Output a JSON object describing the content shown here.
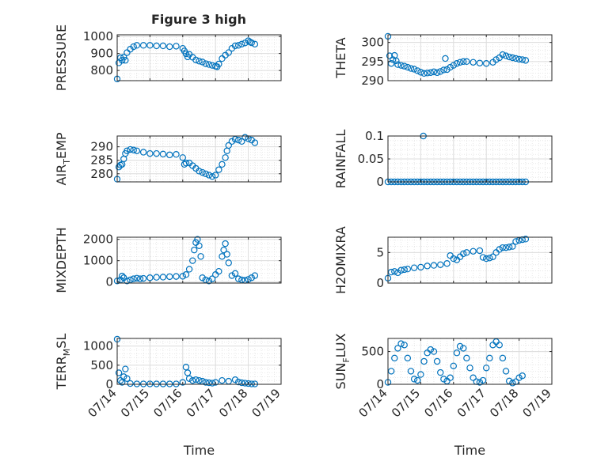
{
  "figure": {
    "title": "Figure 3 high",
    "marker_color": "#0072BD"
  },
  "chart_data": [
    {
      "type": "scatter",
      "ylabel": "PRESSURE",
      "xlim": [
        "07/14",
        "07/19"
      ],
      "ylim": [
        740,
        1010
      ],
      "yticks": [
        800,
        900,
        1000
      ],
      "ytick_labels": [
        "800",
        "900",
        "1000"
      ],
      "x_labels_shown": false,
      "title": "Figure 3 high",
      "grid": true,
      "points": [
        [
          0.0,
          750
        ],
        [
          0.05,
          845
        ],
        [
          0.1,
          875
        ],
        [
          0.15,
          860
        ],
        [
          0.2,
          878
        ],
        [
          0.25,
          860
        ],
        [
          0.3,
          905
        ],
        [
          0.4,
          925
        ],
        [
          0.5,
          940
        ],
        [
          0.6,
          948
        ],
        [
          0.8,
          948
        ],
        [
          1.0,
          948
        ],
        [
          1.2,
          945
        ],
        [
          1.4,
          945
        ],
        [
          1.6,
          940
        ],
        [
          1.8,
          943
        ],
        [
          2.0,
          930
        ],
        [
          2.05,
          915
        ],
        [
          2.1,
          898
        ],
        [
          2.15,
          880
        ],
        [
          2.2,
          895
        ],
        [
          2.3,
          878
        ],
        [
          2.4,
          862
        ],
        [
          2.5,
          855
        ],
        [
          2.6,
          850
        ],
        [
          2.7,
          840
        ],
        [
          2.8,
          835
        ],
        [
          2.9,
          830
        ],
        [
          3.0,
          825
        ],
        [
          3.05,
          822
        ],
        [
          3.1,
          838
        ],
        [
          3.2,
          870
        ],
        [
          3.3,
          890
        ],
        [
          3.4,
          905
        ],
        [
          3.5,
          930
        ],
        [
          3.6,
          945
        ],
        [
          3.7,
          948
        ],
        [
          3.8,
          955
        ],
        [
          3.9,
          962
        ],
        [
          4.0,
          975
        ],
        [
          4.05,
          968
        ],
        [
          4.1,
          963
        ],
        [
          4.2,
          955
        ]
      ]
    },
    {
      "type": "scatter",
      "ylabel": "THETA",
      "xlim": [
        "07/14",
        "07/19"
      ],
      "ylim": [
        290,
        302
      ],
      "yticks": [
        290,
        295,
        300
      ],
      "ytick_labels": [
        "290",
        "295",
        "300"
      ],
      "x_labels_shown": false,
      "grid": true,
      "points": [
        [
          0.0,
          301.6
        ],
        [
          0.05,
          296.5
        ],
        [
          0.1,
          294.5
        ],
        [
          0.15,
          295.5
        ],
        [
          0.2,
          296.6
        ],
        [
          0.25,
          295.2
        ],
        [
          0.3,
          294.2
        ],
        [
          0.4,
          294.0
        ],
        [
          0.5,
          293.8
        ],
        [
          0.6,
          293.5
        ],
        [
          0.7,
          293.2
        ],
        [
          0.8,
          293.0
        ],
        [
          0.9,
          292.6
        ],
        [
          1.0,
          292.2
        ],
        [
          1.1,
          291.9
        ],
        [
          1.2,
          292.0
        ],
        [
          1.3,
          292.1
        ],
        [
          1.4,
          292.3
        ],
        [
          1.5,
          292.1
        ],
        [
          1.6,
          292.4
        ],
        [
          1.7,
          292.8
        ],
        [
          1.75,
          295.8
        ],
        [
          1.8,
          292.9
        ],
        [
          1.9,
          293.5
        ],
        [
          2.0,
          294.0
        ],
        [
          2.1,
          294.5
        ],
        [
          2.2,
          294.8
        ],
        [
          2.3,
          295.0
        ],
        [
          2.4,
          295.0
        ],
        [
          2.6,
          294.8
        ],
        [
          2.8,
          294.6
        ],
        [
          3.0,
          294.5
        ],
        [
          3.2,
          294.8
        ],
        [
          3.3,
          295.5
        ],
        [
          3.4,
          296.0
        ],
        [
          3.5,
          296.8
        ],
        [
          3.6,
          296.5
        ],
        [
          3.7,
          296.2
        ],
        [
          3.8,
          296.0
        ],
        [
          3.9,
          295.8
        ],
        [
          4.0,
          295.6
        ],
        [
          4.1,
          295.5
        ],
        [
          4.2,
          295.3
        ]
      ]
    },
    {
      "type": "scatter",
      "ylabel": "AIR_T EMP",
      "xlim": [
        "07/14",
        "07/19"
      ],
      "ylim": [
        277,
        294
      ],
      "yticks": [
        280,
        285,
        290
      ],
      "ytick_labels": [
        "280",
        "285",
        "290"
      ],
      "x_labels_shown": false,
      "grid": true,
      "points": [
        [
          0.0,
          278.0
        ],
        [
          0.05,
          282.5
        ],
        [
          0.1,
          283.2
        ],
        [
          0.15,
          283.5
        ],
        [
          0.2,
          285.5
        ],
        [
          0.25,
          287.5
        ],
        [
          0.3,
          288.5
        ],
        [
          0.4,
          289.0
        ],
        [
          0.5,
          288.8
        ],
        [
          0.6,
          288.5
        ],
        [
          0.8,
          288.0
        ],
        [
          1.0,
          287.5
        ],
        [
          1.2,
          287.5
        ],
        [
          1.4,
          287.3
        ],
        [
          1.6,
          287.0
        ],
        [
          1.8,
          287.2
        ],
        [
          2.0,
          286.0
        ],
        [
          2.05,
          283.5
        ],
        [
          2.1,
          284.0
        ],
        [
          2.2,
          284.0
        ],
        [
          2.3,
          283.0
        ],
        [
          2.4,
          282.0
        ],
        [
          2.5,
          281.0
        ],
        [
          2.6,
          280.5
        ],
        [
          2.7,
          280.0
        ],
        [
          2.8,
          279.5
        ],
        [
          2.9,
          279.0
        ],
        [
          3.0,
          279.5
        ],
        [
          3.1,
          281.5
        ],
        [
          3.2,
          283.5
        ],
        [
          3.3,
          286.0
        ],
        [
          3.35,
          288.5
        ],
        [
          3.4,
          290.5
        ],
        [
          3.5,
          292.0
        ],
        [
          3.6,
          292.8
        ],
        [
          3.7,
          292.5
        ],
        [
          3.8,
          292.0
        ],
        [
          3.9,
          293.5
        ],
        [
          4.0,
          293.0
        ],
        [
          4.1,
          292.5
        ],
        [
          4.2,
          291.5
        ]
      ]
    },
    {
      "type": "scatter",
      "ylabel": "RAINFALL",
      "xlim": [
        "07/14",
        "07/19"
      ],
      "ylim": [
        0,
        0.1
      ],
      "yticks": [
        0,
        0.05,
        0.1
      ],
      "ytick_labels": [
        "0",
        "0.05",
        "0.1"
      ],
      "x_labels_shown": false,
      "grid": true,
      "points": [
        [
          0.0,
          0
        ],
        [
          0.1,
          0
        ],
        [
          0.2,
          0
        ],
        [
          0.3,
          0
        ],
        [
          0.4,
          0
        ],
        [
          0.5,
          0
        ],
        [
          0.6,
          0
        ],
        [
          0.7,
          0
        ],
        [
          0.8,
          0
        ],
        [
          0.9,
          0
        ],
        [
          1.0,
          0
        ],
        [
          1.1,
          0
        ],
        [
          1.2,
          0
        ],
        [
          1.3,
          0
        ],
        [
          1.4,
          0
        ],
        [
          1.5,
          0
        ],
        [
          1.6,
          0
        ],
        [
          1.7,
          0
        ],
        [
          1.8,
          0
        ],
        [
          1.9,
          0
        ],
        [
          2.0,
          0
        ],
        [
          2.1,
          0
        ],
        [
          2.2,
          0
        ],
        [
          2.3,
          0
        ],
        [
          2.4,
          0
        ],
        [
          2.5,
          0
        ],
        [
          2.6,
          0
        ],
        [
          2.7,
          0
        ],
        [
          2.8,
          0
        ],
        [
          2.9,
          0
        ],
        [
          3.0,
          0
        ],
        [
          3.1,
          0
        ],
        [
          3.2,
          0
        ],
        [
          3.3,
          0
        ],
        [
          3.4,
          0
        ],
        [
          3.5,
          0
        ],
        [
          3.6,
          0
        ],
        [
          3.7,
          0
        ],
        [
          3.8,
          0
        ],
        [
          3.9,
          0
        ],
        [
          4.0,
          0
        ],
        [
          4.1,
          0
        ],
        [
          4.2,
          0
        ],
        [
          1.08,
          0.1
        ]
      ]
    },
    {
      "type": "scatter",
      "ylabel": "MIXDEPTH",
      "xlim": [
        "07/14",
        "07/19"
      ],
      "ylim": [
        -50,
        2100
      ],
      "yticks": [
        0,
        1000,
        2000
      ],
      "ytick_labels": [
        "0",
        "1000",
        "2000"
      ],
      "x_labels_shown": false,
      "grid": true,
      "points": [
        [
          0.0,
          50
        ],
        [
          0.1,
          100
        ],
        [
          0.15,
          280
        ],
        [
          0.2,
          200
        ],
        [
          0.3,
          50
        ],
        [
          0.4,
          100
        ],
        [
          0.5,
          150
        ],
        [
          0.6,
          180
        ],
        [
          0.7,
          150
        ],
        [
          0.8,
          170
        ],
        [
          1.0,
          200
        ],
        [
          1.2,
          220
        ],
        [
          1.4,
          230
        ],
        [
          1.6,
          250
        ],
        [
          1.8,
          260
        ],
        [
          2.0,
          270
        ],
        [
          2.1,
          350
        ],
        [
          2.2,
          600
        ],
        [
          2.3,
          1000
        ],
        [
          2.35,
          1500
        ],
        [
          2.4,
          1850
        ],
        [
          2.45,
          2000
        ],
        [
          2.5,
          1700
        ],
        [
          2.55,
          1200
        ],
        [
          2.6,
          200
        ],
        [
          2.7,
          100
        ],
        [
          2.8,
          50
        ],
        [
          2.9,
          150
        ],
        [
          3.0,
          350
        ],
        [
          3.1,
          500
        ],
        [
          3.2,
          1200
        ],
        [
          3.25,
          1500
        ],
        [
          3.3,
          1800
        ],
        [
          3.35,
          1300
        ],
        [
          3.4,
          900
        ],
        [
          3.5,
          300
        ],
        [
          3.6,
          400
        ],
        [
          3.7,
          150
        ],
        [
          3.8,
          100
        ],
        [
          3.9,
          80
        ],
        [
          4.0,
          120
        ],
        [
          4.1,
          200
        ],
        [
          4.2,
          300
        ]
      ]
    },
    {
      "type": "scatter",
      "ylabel": "H2OMIXRA",
      "xlim": [
        "07/14",
        "07/19"
      ],
      "ylim": [
        0,
        7.5
      ],
      "yticks": [
        0,
        5
      ],
      "ytick_labels": [
        "0",
        "5"
      ],
      "x_labels_shown": false,
      "grid": true,
      "points": [
        [
          0.0,
          0.8
        ],
        [
          0.1,
          1.8
        ],
        [
          0.2,
          1.9
        ],
        [
          0.3,
          1.7
        ],
        [
          0.4,
          2.1
        ],
        [
          0.5,
          2.2
        ],
        [
          0.6,
          2.3
        ],
        [
          0.8,
          2.5
        ],
        [
          1.0,
          2.6
        ],
        [
          1.2,
          2.8
        ],
        [
          1.4,
          2.9
        ],
        [
          1.6,
          3.0
        ],
        [
          1.8,
          3.2
        ],
        [
          1.9,
          4.5
        ],
        [
          2.0,
          4.0
        ],
        [
          2.1,
          3.8
        ],
        [
          2.2,
          4.3
        ],
        [
          2.3,
          4.8
        ],
        [
          2.4,
          5.0
        ],
        [
          2.6,
          5.2
        ],
        [
          2.8,
          5.3
        ],
        [
          2.9,
          4.2
        ],
        [
          3.0,
          4.0
        ],
        [
          3.1,
          4.1
        ],
        [
          3.2,
          4.3
        ],
        [
          3.3,
          5.0
        ],
        [
          3.4,
          5.5
        ],
        [
          3.5,
          5.8
        ],
        [
          3.6,
          5.8
        ],
        [
          3.7,
          5.9
        ],
        [
          3.8,
          6.0
        ],
        [
          3.9,
          6.8
        ],
        [
          4.0,
          7.0
        ],
        [
          4.1,
          7.1
        ],
        [
          4.2,
          7.2
        ]
      ]
    },
    {
      "type": "scatter",
      "ylabel": "TERR_M SL",
      "xlim": [
        "07/14",
        "07/19"
      ],
      "ylim": [
        0,
        1200
      ],
      "yticks": [
        0,
        500,
        1000
      ],
      "ytick_labels": [
        "0",
        "500",
        "1000"
      ],
      "xtick_labels": [
        "07/14",
        "07/15",
        "07/16",
        "07/17",
        "07/18",
        "07/19"
      ],
      "xlabel": "Time",
      "x_labels_shown": true,
      "grid": true,
      "points": [
        [
          0.0,
          1180
        ],
        [
          0.05,
          300
        ],
        [
          0.1,
          100
        ],
        [
          0.15,
          50
        ],
        [
          0.2,
          200
        ],
        [
          0.25,
          400
        ],
        [
          0.3,
          150
        ],
        [
          0.4,
          20
        ],
        [
          0.6,
          10
        ],
        [
          0.8,
          10
        ],
        [
          1.0,
          10
        ],
        [
          1.2,
          10
        ],
        [
          1.4,
          10
        ],
        [
          1.6,
          10
        ],
        [
          1.8,
          10
        ],
        [
          2.0,
          50
        ],
        [
          2.1,
          450
        ],
        [
          2.15,
          300
        ],
        [
          2.2,
          150
        ],
        [
          2.3,
          100
        ],
        [
          2.4,
          120
        ],
        [
          2.5,
          100
        ],
        [
          2.6,
          80
        ],
        [
          2.7,
          50
        ],
        [
          2.8,
          40
        ],
        [
          2.9,
          30
        ],
        [
          3.0,
          50
        ],
        [
          3.2,
          100
        ],
        [
          3.4,
          80
        ],
        [
          3.6,
          120
        ],
        [
          3.7,
          60
        ],
        [
          3.8,
          40
        ],
        [
          3.9,
          30
        ],
        [
          4.0,
          20
        ],
        [
          4.1,
          10
        ],
        [
          4.2,
          10
        ]
      ]
    },
    {
      "type": "scatter",
      "ylabel": "SUN_F LUX",
      "xlim": [
        "07/14",
        "07/19"
      ],
      "ylim": [
        0,
        700
      ],
      "yticks": [
        0,
        500
      ],
      "ytick_labels": [
        "0",
        "500"
      ],
      "xtick_labels": [
        "07/14",
        "07/15",
        "07/16",
        "07/17",
        "07/18",
        "07/19"
      ],
      "xlabel": "Time",
      "x_labels_shown": true,
      "grid": true,
      "points": [
        [
          0.0,
          30
        ],
        [
          0.1,
          200
        ],
        [
          0.2,
          400
        ],
        [
          0.3,
          550
        ],
        [
          0.4,
          620
        ],
        [
          0.5,
          600
        ],
        [
          0.6,
          400
        ],
        [
          0.7,
          200
        ],
        [
          0.8,
          80
        ],
        [
          0.9,
          60
        ],
        [
          1.0,
          150
        ],
        [
          1.1,
          350
        ],
        [
          1.2,
          480
        ],
        [
          1.3,
          530
        ],
        [
          1.4,
          500
        ],
        [
          1.5,
          350
        ],
        [
          1.6,
          180
        ],
        [
          1.7,
          80
        ],
        [
          1.8,
          50
        ],
        [
          1.9,
          100
        ],
        [
          2.0,
          280
        ],
        [
          2.1,
          480
        ],
        [
          2.2,
          580
        ],
        [
          2.3,
          550
        ],
        [
          2.4,
          400
        ],
        [
          2.5,
          250
        ],
        [
          2.6,
          100
        ],
        [
          2.7,
          40
        ],
        [
          2.8,
          30
        ],
        [
          2.9,
          60
        ],
        [
          3.0,
          250
        ],
        [
          3.1,
          400
        ],
        [
          3.2,
          600
        ],
        [
          3.3,
          650
        ],
        [
          3.4,
          600
        ],
        [
          3.5,
          400
        ],
        [
          3.6,
          200
        ],
        [
          3.7,
          50
        ],
        [
          3.8,
          20
        ],
        [
          3.9,
          40
        ],
        [
          4.0,
          100
        ],
        [
          4.1,
          130
        ]
      ]
    }
  ]
}
